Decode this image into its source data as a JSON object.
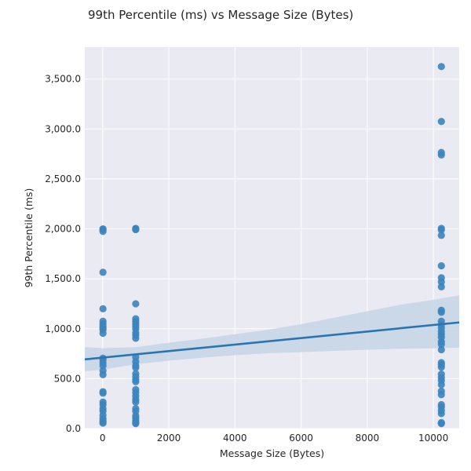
{
  "chart_data": {
    "type": "scatter",
    "title": "99th Percentile (ms) vs Message Size (Bytes)",
    "xlabel": "Message Size (Bytes)",
    "ylabel": "99th Percentile (ms)",
    "xlim": [
      -540,
      10780
    ],
    "ylim": [
      0,
      3820
    ],
    "x_ticks": [
      0,
      2000,
      4000,
      6000,
      8000,
      10000
    ],
    "x_tick_labels": [
      "0",
      "2000",
      "4000",
      "6000",
      "8000",
      "10000"
    ],
    "y_ticks": [
      0,
      500,
      1000,
      1500,
      2000,
      2500,
      3000,
      3500
    ],
    "y_tick_labels": [
      "0.0",
      "500.0",
      "1,000.0",
      "1,500.0",
      "2,000.0",
      "2,500.0",
      "3,000.0",
      "3,500.0"
    ],
    "grid": true,
    "colors": {
      "points": "#3b84bd",
      "line": "#2a75b1",
      "band": "#c6d5e6",
      "plot_bg": "#eaeaf2",
      "grid": "#ffffff"
    },
    "points": [
      {
        "x": 10,
        "y": 2000
      },
      {
        "x": 10,
        "y": 1995
      },
      {
        "x": 10,
        "y": 1975
      },
      {
        "x": 10,
        "y": 1565
      },
      {
        "x": 10,
        "y": 1200
      },
      {
        "x": 10,
        "y": 1075
      },
      {
        "x": 10,
        "y": 1050
      },
      {
        "x": 10,
        "y": 1025
      },
      {
        "x": 10,
        "y": 1005
      },
      {
        "x": 10,
        "y": 990
      },
      {
        "x": 10,
        "y": 955
      },
      {
        "x": 10,
        "y": 705
      },
      {
        "x": 10,
        "y": 690
      },
      {
        "x": 10,
        "y": 660
      },
      {
        "x": 10,
        "y": 630
      },
      {
        "x": 10,
        "y": 580
      },
      {
        "x": 10,
        "y": 540
      },
      {
        "x": 10,
        "y": 370
      },
      {
        "x": 10,
        "y": 355
      },
      {
        "x": 10,
        "y": 265
      },
      {
        "x": 10,
        "y": 240
      },
      {
        "x": 10,
        "y": 200
      },
      {
        "x": 10,
        "y": 175
      },
      {
        "x": 10,
        "y": 135
      },
      {
        "x": 10,
        "y": 100
      },
      {
        "x": 10,
        "y": 80
      },
      {
        "x": 10,
        "y": 65
      },
      {
        "x": 10,
        "y": 55
      },
      {
        "x": 1000,
        "y": 2005
      },
      {
        "x": 1000,
        "y": 1998
      },
      {
        "x": 1000,
        "y": 1993
      },
      {
        "x": 1000,
        "y": 1250
      },
      {
        "x": 1000,
        "y": 1100
      },
      {
        "x": 1000,
        "y": 1075
      },
      {
        "x": 1000,
        "y": 1050
      },
      {
        "x": 1000,
        "y": 1025
      },
      {
        "x": 1000,
        "y": 1000
      },
      {
        "x": 1000,
        "y": 960
      },
      {
        "x": 1000,
        "y": 935
      },
      {
        "x": 1000,
        "y": 905
      },
      {
        "x": 1000,
        "y": 715
      },
      {
        "x": 1000,
        "y": 670
      },
      {
        "x": 1000,
        "y": 630
      },
      {
        "x": 1000,
        "y": 610
      },
      {
        "x": 1000,
        "y": 550
      },
      {
        "x": 1000,
        "y": 520
      },
      {
        "x": 1000,
        "y": 490
      },
      {
        "x": 1000,
        "y": 470
      },
      {
        "x": 1000,
        "y": 390
      },
      {
        "x": 1000,
        "y": 360
      },
      {
        "x": 1000,
        "y": 325
      },
      {
        "x": 1000,
        "y": 290
      },
      {
        "x": 1000,
        "y": 265
      },
      {
        "x": 1000,
        "y": 200
      },
      {
        "x": 1000,
        "y": 175
      },
      {
        "x": 1000,
        "y": 130
      },
      {
        "x": 1000,
        "y": 105
      },
      {
        "x": 1000,
        "y": 80
      },
      {
        "x": 1000,
        "y": 60
      },
      {
        "x": 1000,
        "y": 50
      },
      {
        "x": 10240,
        "y": 3625
      },
      {
        "x": 10240,
        "y": 3075
      },
      {
        "x": 10240,
        "y": 2765
      },
      {
        "x": 10240,
        "y": 2740
      },
      {
        "x": 10240,
        "y": 2005
      },
      {
        "x": 10240,
        "y": 1990
      },
      {
        "x": 10240,
        "y": 1935
      },
      {
        "x": 10240,
        "y": 1630
      },
      {
        "x": 10240,
        "y": 1510
      },
      {
        "x": 10240,
        "y": 1470
      },
      {
        "x": 10240,
        "y": 1420
      },
      {
        "x": 10240,
        "y": 1185
      },
      {
        "x": 10240,
        "y": 1165
      },
      {
        "x": 10240,
        "y": 1075
      },
      {
        "x": 10240,
        "y": 1040
      },
      {
        "x": 10240,
        "y": 1010
      },
      {
        "x": 10240,
        "y": 975
      },
      {
        "x": 10240,
        "y": 945
      },
      {
        "x": 10240,
        "y": 915
      },
      {
        "x": 10240,
        "y": 870
      },
      {
        "x": 10240,
        "y": 845
      },
      {
        "x": 10240,
        "y": 790
      },
      {
        "x": 10240,
        "y": 660
      },
      {
        "x": 10240,
        "y": 640
      },
      {
        "x": 10240,
        "y": 615
      },
      {
        "x": 10240,
        "y": 545
      },
      {
        "x": 10240,
        "y": 510
      },
      {
        "x": 10240,
        "y": 480
      },
      {
        "x": 10240,
        "y": 440
      },
      {
        "x": 10240,
        "y": 375
      },
      {
        "x": 10240,
        "y": 340
      },
      {
        "x": 10240,
        "y": 240
      },
      {
        "x": 10240,
        "y": 215
      },
      {
        "x": 10240,
        "y": 180
      },
      {
        "x": 10240,
        "y": 150
      },
      {
        "x": 10240,
        "y": 60
      },
      {
        "x": 10240,
        "y": 50
      }
    ],
    "regression": {
      "x": [
        -540,
        10780
      ],
      "y": [
        693,
        1063
      ]
    },
    "confidence_band": {
      "x": [
        -540,
        0,
        1000,
        2000,
        3000,
        4000,
        5000,
        6000,
        7000,
        8000,
        9000,
        10000,
        10780
      ],
      "upper": [
        815,
        805,
        815,
        860,
        900,
        945,
        990,
        1045,
        1110,
        1175,
        1240,
        1290,
        1335
      ],
      "lower": [
        575,
        590,
        645,
        680,
        710,
        735,
        755,
        765,
        778,
        790,
        800,
        805,
        810
      ]
    }
  }
}
